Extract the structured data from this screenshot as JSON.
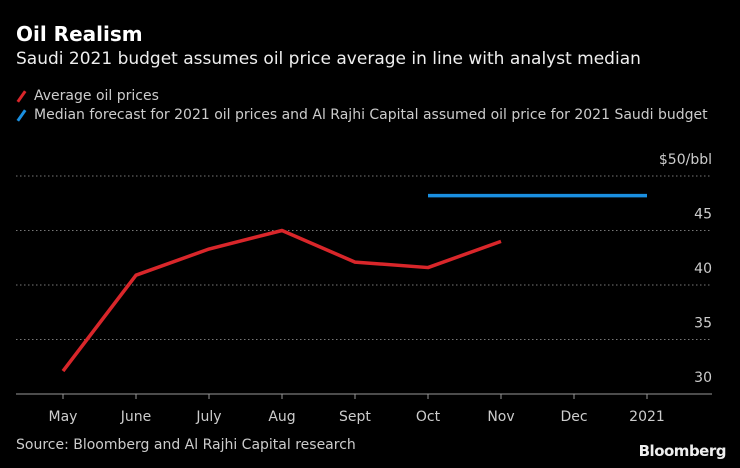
{
  "chart_data": {
    "type": "line",
    "title": "Oil Realism",
    "subtitle": "Saudi 2021 budget assumes oil price average in line with analyst median",
    "categories": [
      "May",
      "June",
      "July",
      "Aug",
      "Sept",
      "Oct",
      "Nov",
      "Dec",
      "2021"
    ],
    "series": [
      {
        "name": "Average oil prices",
        "color": "#d9262a",
        "values": [
          32.1,
          40.9,
          43.3,
          45.0,
          42.1,
          41.6,
          44.0,
          null,
          null
        ]
      },
      {
        "name": "Median forecast for 2021 oil prices and Al Rajhi Capital assumed oil price for 2021 Saudi budget",
        "color": "#1a8fe0",
        "values": [
          null,
          null,
          null,
          null,
          null,
          48.2,
          48.2,
          48.2,
          48.2
        ]
      }
    ],
    "ylim": [
      30,
      50
    ],
    "yticks": [
      30,
      35,
      40,
      45,
      {
        "value": 50,
        "label": "$50/bbl"
      }
    ],
    "grid": true,
    "source": "Source: Bloomberg and Al Rajhi Capital research",
    "brand": "Bloomberg"
  }
}
